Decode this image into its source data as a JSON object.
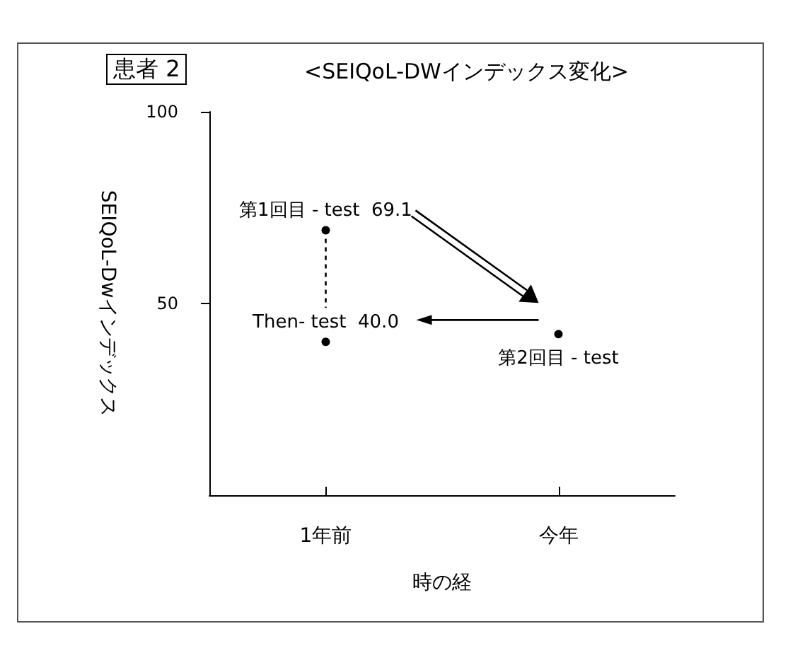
{
  "chart_data": {
    "type": "scatter",
    "title": "<SEIQoL-DWインデックス変化>",
    "ylabel": "SEIQoL-Dwインデックス",
    "xlabel": "時の経",
    "annotations": [
      "患者 2"
    ],
    "categories": [
      "1年前",
      "今年"
    ],
    "series": [
      {
        "name": "第1回目 - test",
        "color": "#000000",
        "values": [
          69.1,
          null
        ],
        "value_labels": [
          "69.1",
          null
        ]
      },
      {
        "name": "Then- test",
        "color": "#000000",
        "values": [
          40.0,
          null
        ],
        "value_labels": [
          "40.0",
          null
        ]
      },
      {
        "name": "第2回目 - test",
        "color": "#000000",
        "values": [
          null,
          42
        ],
        "value_labels": [
          null,
          null
        ]
      }
    ],
    "ylim": [
      0,
      100
    ],
    "yticks": [
      50,
      100
    ],
    "grid": false,
    "legend": false,
    "marker": "circle"
  }
}
